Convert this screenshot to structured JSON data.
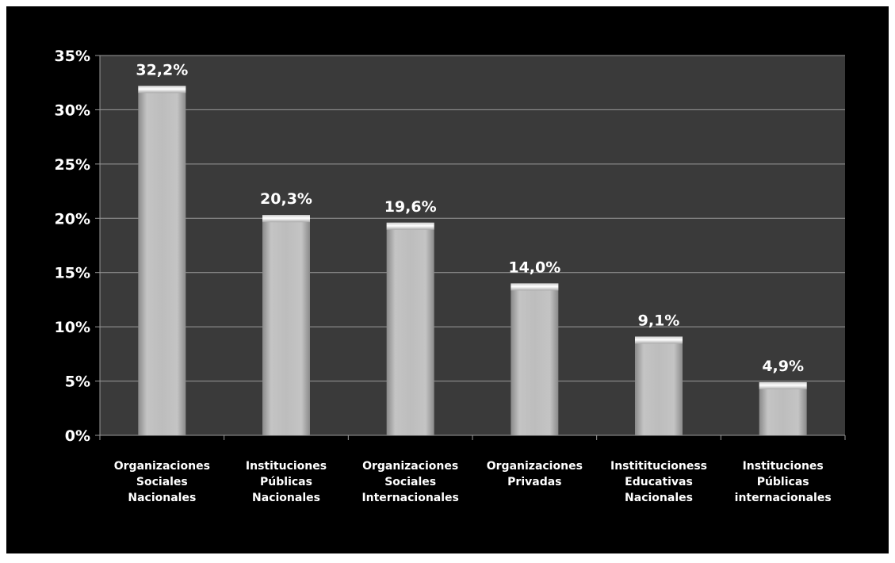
{
  "chart_data": {
    "type": "bar",
    "categories": [
      [
        "Organizaciones",
        "Sociales",
        "Nacionales"
      ],
      [
        "Instituciones",
        "Públicas",
        "Nacionales"
      ],
      [
        "Organizaciones",
        "Sociales",
        "Internacionales"
      ],
      [
        "Organizaciones",
        "Privadas"
      ],
      [
        "Instititucioness",
        "Educativas",
        "Nacionales"
      ],
      [
        "Instituciones",
        "Públicas",
        "internacionales"
      ]
    ],
    "values": [
      32.2,
      20.3,
      19.6,
      14.0,
      9.1,
      4.9
    ],
    "value_labels": [
      "32,2%",
      "20,3%",
      "19,6%",
      "14,0%",
      "9,1%",
      "4,9%"
    ],
    "ylim": [
      0,
      35
    ],
    "yticks": [
      0,
      5,
      10,
      15,
      20,
      25,
      30,
      35
    ],
    "ytick_labels": [
      "0%",
      "5%",
      "10%",
      "15%",
      "20%",
      "25%",
      "30%",
      "35%"
    ],
    "grid": true,
    "legend": "none",
    "colors": {
      "frame_background": "#000000",
      "plot_background": "#3a3a3a",
      "grid": "#9a9a9a",
      "bar_light": "#e6e6e6",
      "bar_mid": "#b4b4b4",
      "bar_dark": "#8a8a8a",
      "text": "#ffffff"
    }
  }
}
